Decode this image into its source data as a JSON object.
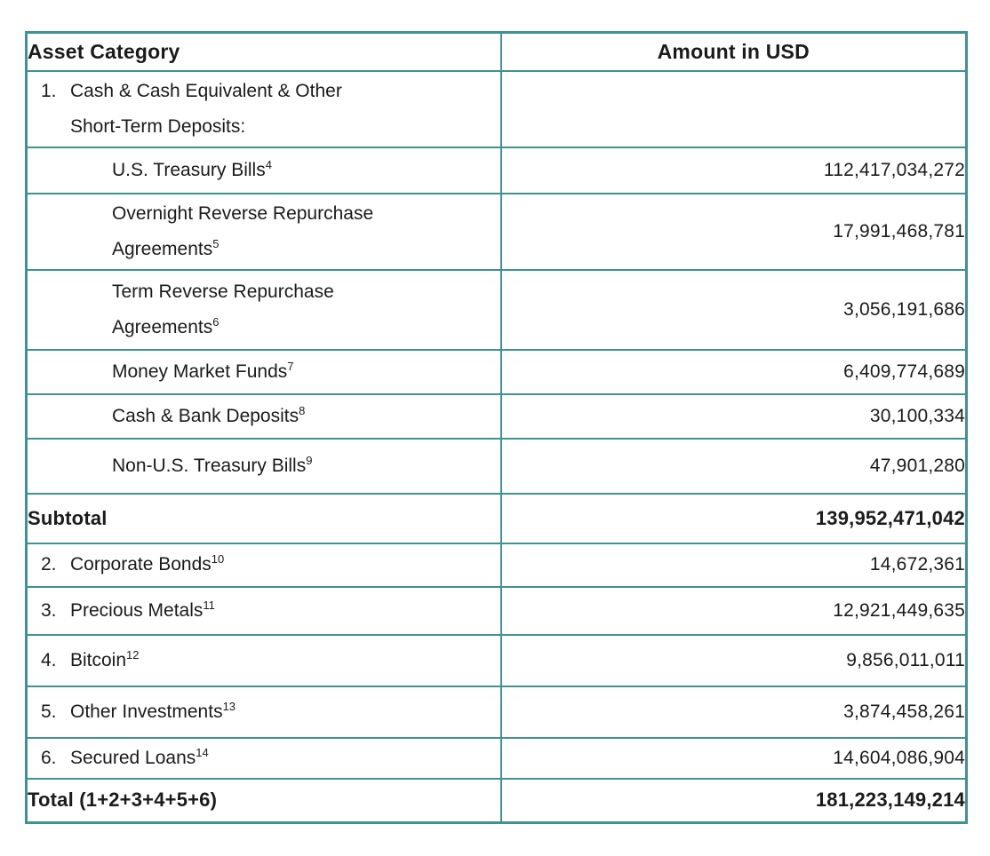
{
  "table": {
    "border_color": "#3f9192",
    "header": {
      "asset_category": "Asset Category",
      "amount_in_usd": "Amount in USD"
    },
    "rows": [
      {
        "num": "1.",
        "line1": "Cash & Cash Equivalent & Other",
        "line2": "Short-Term Deposits:",
        "amount": ""
      },
      {
        "line1": "U.S. Treasury Bills",
        "sup": "4",
        "amount": "112,417,034,272"
      },
      {
        "line1": "Overnight Reverse Repurchase",
        "line2": "Agreements",
        "sup": "5",
        "amount": "17,991,468,781"
      },
      {
        "line1": "Term Reverse Repurchase",
        "line2": "Agreements",
        "sup": "6",
        "amount": "3,056,191,686"
      },
      {
        "line1": "Money Market Funds",
        "sup": "7",
        "amount": "6,409,774,689"
      },
      {
        "line1": "Cash & Bank Deposits",
        "sup": "8",
        "amount": "30,100,334"
      },
      {
        "line1": "Non-U.S. Treasury Bills",
        "sup": "9",
        "amount": "47,901,280"
      },
      {
        "line1": "Subtotal",
        "amount": "139,952,471,042"
      },
      {
        "num": "2.",
        "line1": "Corporate Bonds",
        "sup": "10",
        "amount": "14,672,361"
      },
      {
        "num": "3.",
        "line1": "Precious Metals",
        "sup": "11",
        "amount": "12,921,449,635"
      },
      {
        "num": "4.",
        "line1": "Bitcoin",
        "sup": "12",
        "amount": "9,856,011,011"
      },
      {
        "num": "5.",
        "line1": "Other Investments",
        "sup": "13",
        "amount": "3,874,458,261"
      },
      {
        "num": "6.",
        "line1": "Secured Loans",
        "sup": "14",
        "amount": "14,604,086,904"
      },
      {
        "line1": "Total (1+2+3+4+5+6)",
        "amount": "181,223,149,214"
      }
    ]
  }
}
